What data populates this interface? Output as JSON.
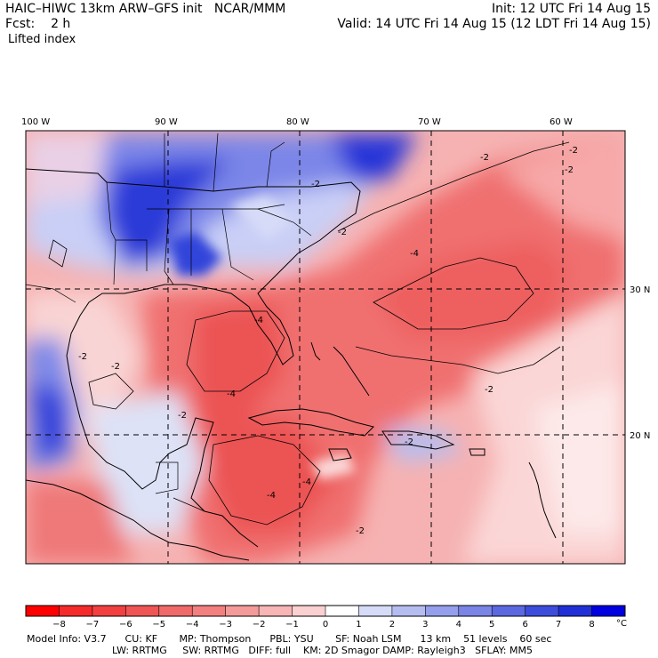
{
  "header": {
    "model": "HAIC–HIWC 13km ARW–GFS init",
    "org": "NCAR/MMM",
    "fcst_label": "Fcst:",
    "fcst_value": "2 h",
    "field": "Lifted index",
    "init": "Init: 12 UTC Fri 14 Aug 15",
    "valid": "Valid: 14 UTC Fri 14 Aug 15 (12 LDT Fri 14 Aug 15)"
  },
  "map": {
    "lon_labels": [
      "100 W",
      "90 W",
      "80 W",
      "70 W",
      "60 W"
    ],
    "lat_labels": [
      "30 N",
      "20 N"
    ],
    "contour_labels": [
      "-2",
      "-2",
      "-4",
      "-2",
      "-2",
      "-4",
      "-2",
      "-4",
      "-2",
      "-2",
      "-2",
      "-4",
      "-2",
      "-4",
      "-2",
      "-2"
    ]
  },
  "colorbar": {
    "ticks": [
      "−8",
      "−7",
      "−6",
      "−5",
      "−4",
      "−3",
      "−2",
      "−1",
      "0",
      "1",
      "2",
      "3",
      "4",
      "5",
      "6",
      "7",
      "8"
    ],
    "unit": "°C",
    "colors": [
      "#ff0000",
      "#f52a2a",
      "#f24040",
      "#f05555",
      "#f06a6a",
      "#f28080",
      "#f59a9a",
      "#f7b5b5",
      "#fad0d0",
      "#ffffff",
      "#d6dcf7",
      "#b5bdf0",
      "#959feb",
      "#7a85e6",
      "#5c68e0",
      "#3d4cdb",
      "#2030d6",
      "#0000e0"
    ]
  },
  "footer": {
    "line1": "Model Info: V3.7      CU: KF       MP: Thompson      PBL: YSU       SF: Noah LSM      13 km    51 levels    60 sec",
    "line2": "LW: RRTMG     SW: RRTMG   DIFF: full    KM: 2D Smagor DAMP: Rayleigh3   SFLAY: MM5"
  }
}
